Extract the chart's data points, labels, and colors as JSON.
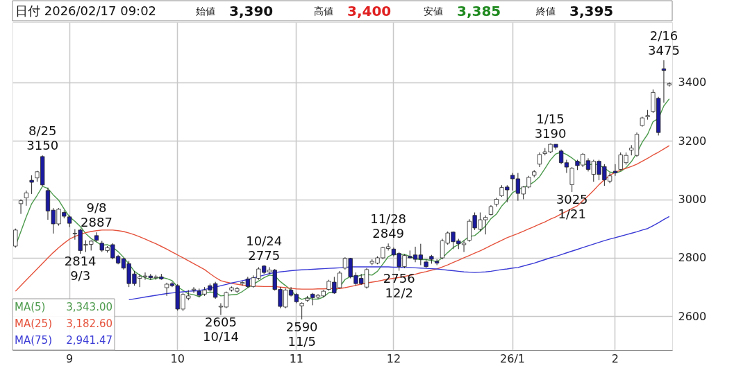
{
  "chart_data": {
    "type": "candlestick",
    "categories": [
      null,
      null,
      null,
      null,
      null,
      null,
      null,
      null,
      null,
      null,
      "9",
      null,
      null,
      null,
      null,
      null,
      null,
      null,
      null,
      null,
      null,
      null,
      null,
      null,
      null,
      null,
      null,
      null,
      null,
      null,
      "10",
      null,
      null,
      null,
      null,
      null,
      null,
      null,
      null,
      null,
      null,
      null,
      null,
      null,
      null,
      null,
      null,
      null,
      null,
      null,
      null,
      null,
      "11",
      null,
      null,
      null,
      null,
      null,
      null,
      null,
      null,
      null,
      null,
      null,
      null,
      null,
      null,
      null,
      null,
      null,
      "12",
      null,
      null,
      null,
      null,
      null,
      null,
      null,
      null,
      null,
      null,
      null,
      null,
      null,
      null,
      null,
      null,
      null,
      null,
      null,
      null,
      null,
      "26/1",
      null,
      null,
      null,
      null,
      null,
      null,
      null,
      null,
      null,
      null,
      null,
      null,
      null,
      null,
      null,
      null,
      null,
      null,
      "2",
      null,
      null,
      null,
      null,
      null,
      null,
      null,
      null,
      null,
      null
    ],
    "ohlc": [
      [
        2840,
        2900,
        2835,
        2895
      ],
      [
        2985,
        3000,
        2950,
        2995
      ],
      [
        3005,
        3030,
        2978,
        3022
      ],
      [
        3065,
        3082,
        3018,
        3058
      ],
      [
        3073,
        3097,
        3060,
        3094
      ],
      [
        3146,
        3150,
        3045,
        3049
      ],
      [
        3030,
        3040,
        2930,
        2960
      ],
      [
        2963,
        2970,
        2883,
        2916
      ],
      [
        2916,
        2970,
        2910,
        2966
      ],
      [
        2955,
        2962,
        2935,
        2942
      ],
      [
        2940,
        2945,
        2905,
        2918
      ],
      [
        2882,
        2898,
        2862,
        2884
      ],
      [
        2895,
        2900,
        2814,
        2825
      ],
      [
        2843,
        2860,
        2820,
        2846
      ],
      [
        2846,
        2860,
        2825,
        2857
      ],
      [
        2876,
        2887,
        2855,
        2860
      ],
      [
        2850,
        2858,
        2820,
        2826
      ],
      [
        2825,
        2840,
        2818,
        2835
      ],
      [
        2845,
        2850,
        2795,
        2800
      ],
      [
        2805,
        2810,
        2778,
        2782
      ],
      [
        2797,
        2800,
        2760,
        2765
      ],
      [
        2780,
        2790,
        2700,
        2712
      ],
      [
        2745,
        2755,
        2705,
        2712
      ],
      [
        2730,
        2745,
        2700,
        2735
      ],
      [
        2735,
        2750,
        2725,
        2738
      ],
      [
        2738,
        2745,
        2725,
        2732
      ],
      [
        2732,
        2742,
        2725,
        2735
      ],
      [
        2735,
        2745,
        2725,
        2728
      ],
      [
        2698,
        2715,
        2670,
        2710
      ],
      [
        2712,
        2718,
        2700,
        2705
      ],
      [
        2705,
        2710,
        2620,
        2625
      ],
      [
        2625,
        2680,
        2618,
        2675
      ],
      [
        2662,
        2690,
        2655,
        2670
      ],
      [
        2690,
        2700,
        2680,
        2693
      ],
      [
        2686,
        2695,
        2665,
        2672
      ],
      [
        2676,
        2700,
        2670,
        2690
      ],
      [
        2705,
        2712,
        2685,
        2690
      ],
      [
        2712,
        2718,
        2660,
        2665
      ],
      [
        2632,
        2645,
        2605,
        2635
      ],
      [
        2632,
        2685,
        2628,
        2681
      ],
      [
        2690,
        2702,
        2685,
        2698
      ],
      [
        2686,
        2700,
        2680,
        2695
      ],
      [
        2712,
        2720,
        2705,
        2716
      ],
      [
        2728,
        2735,
        2698,
        2702
      ],
      [
        2702,
        2740,
        2698,
        2732
      ],
      [
        2730,
        2768,
        2725,
        2762
      ],
      [
        2772,
        2775,
        2745,
        2750
      ],
      [
        2752,
        2768,
        2745,
        2758
      ],
      [
        2758,
        2762,
        2688,
        2692
      ],
      [
        2692,
        2700,
        2628,
        2634
      ],
      [
        2632,
        2695,
        2628,
        2690
      ],
      [
        2690,
        2700,
        2668,
        2672
      ],
      [
        2675,
        2680,
        2645,
        2650
      ],
      [
        2636,
        2648,
        2590,
        2645
      ],
      [
        2655,
        2670,
        2650,
        2662
      ],
      [
        2676,
        2680,
        2638,
        2664
      ],
      [
        2666,
        2676,
        2660,
        2672
      ],
      [
        2670,
        2690,
        2665,
        2686
      ],
      [
        2692,
        2725,
        2688,
        2720
      ],
      [
        2717,
        2735,
        2677,
        2680
      ],
      [
        2698,
        2755,
        2695,
        2748
      ],
      [
        2765,
        2802,
        2760,
        2798
      ],
      [
        2798,
        2800,
        2730,
        2735
      ],
      [
        2740,
        2750,
        2705,
        2712
      ],
      [
        2730,
        2745,
        2708,
        2712
      ],
      [
        2700,
        2765,
        2695,
        2760
      ],
      [
        2782,
        2795,
        2775,
        2788
      ],
      [
        2782,
        2805,
        2778,
        2800
      ],
      [
        2800,
        2838,
        2795,
        2835
      ],
      [
        2832,
        2849,
        2825,
        2838
      ],
      [
        2830,
        2835,
        2805,
        2810
      ],
      [
        2815,
        2820,
        2756,
        2770
      ],
      [
        2770,
        2812,
        2765,
        2808
      ],
      [
        2805,
        2825,
        2798,
        2800
      ],
      [
        2810,
        2838,
        2785,
        2795
      ],
      [
        2810,
        2848,
        2775,
        2795
      ],
      [
        2786,
        2795,
        2765,
        2770
      ],
      [
        2805,
        2810,
        2780,
        2795
      ],
      [
        2788,
        2795,
        2775,
        2782
      ],
      [
        2800,
        2865,
        2795,
        2858
      ],
      [
        2850,
        2890,
        2845,
        2885
      ],
      [
        2888,
        2890,
        2830,
        2855
      ],
      [
        2858,
        2865,
        2830,
        2848
      ],
      [
        2845,
        2860,
        2820,
        2850
      ],
      [
        2860,
        2932,
        2855,
        2925
      ],
      [
        2945,
        2955,
        2895,
        2902
      ],
      [
        2898,
        2955,
        2890,
        2930
      ],
      [
        2930,
        2945,
        2880,
        2938
      ],
      [
        2948,
        2980,
        2945,
        2975
      ],
      [
        2983,
        3005,
        2975,
        3000
      ],
      [
        3012,
        3048,
        3008,
        3040
      ],
      [
        3042,
        3048,
        2990,
        3032
      ],
      [
        3082,
        3090,
        3030,
        3070
      ],
      [
        3070,
        3090,
        2995,
        3020
      ],
      [
        3018,
        3045,
        3000,
        3042
      ],
      [
        3042,
        3080,
        3038,
        3075
      ],
      [
        3082,
        3100,
        3075,
        3094
      ],
      [
        3120,
        3160,
        3110,
        3153
      ],
      [
        3156,
        3175,
        3150,
        3162
      ],
      [
        3162,
        3190,
        3158,
        3188
      ],
      [
        3188,
        3188,
        3170,
        3178
      ],
      [
        3165,
        3170,
        3120,
        3125
      ],
      [
        3125,
        3135,
        3090,
        3110
      ],
      [
        3050,
        3110,
        3025,
        3106
      ],
      [
        3130,
        3135,
        3100,
        3115
      ],
      [
        3117,
        3158,
        3110,
        3154
      ],
      [
        3132,
        3140,
        3095,
        3102
      ],
      [
        3085,
        3135,
        3060,
        3130
      ],
      [
        3130,
        3135,
        3065,
        3085
      ],
      [
        3112,
        3120,
        3046,
        3066
      ],
      [
        3062,
        3090,
        3055,
        3080
      ],
      [
        3096,
        3120,
        3080,
        3090
      ],
      [
        3102,
        3160,
        3098,
        3152
      ],
      [
        3125,
        3160,
        3118,
        3150
      ],
      [
        3168,
        3185,
        3150,
        3175
      ],
      [
        3150,
        3228,
        3145,
        3222
      ],
      [
        3252,
        3282,
        3248,
        3278
      ],
      [
        3282,
        3305,
        3272,
        3286
      ],
      [
        3300,
        3375,
        3295,
        3365
      ],
      [
        3345,
        3350,
        3218,
        3228
      ],
      [
        3446,
        3475,
        3330,
        3440
      ],
      [
        3390,
        3400,
        3385,
        3395
      ]
    ],
    "colors": [
      "#ffffff",
      "#ffffff",
      "#ffffff",
      "#1a1aa0",
      "#ffffff",
      "#1a1aa0",
      "#1a1aa0",
      "#1a1aa0",
      "#ffffff",
      "#1a1aa0",
      "#1a1aa0",
      "#ffffff",
      "#1a1aa0",
      "#ffffff",
      "#ffffff",
      "#1a1aa0",
      "#1a1aa0",
      "#ffffff",
      "#1a1aa0",
      "#1a1aa0",
      "#1a1aa0",
      "#1a1aa0",
      "#1a1aa0",
      "#ffffff",
      "#ffffff",
      "#1a1aa0",
      "#ffffff",
      "#1a1aa0",
      "#ffffff",
      "#1a1aa0",
      "#1a1aa0",
      "#ffffff",
      "#ffffff",
      "#ffffff",
      "#1a1aa0",
      "#ffffff",
      "#1a1aa0",
      "#1a1aa0",
      "#ffffff",
      "#ffffff",
      "#ffffff",
      "#ffffff",
      "#ffffff",
      "#1a1aa0",
      "#ffffff",
      "#ffffff",
      "#1a1aa0",
      "#ffffff",
      "#1a1aa0",
      "#1a1aa0",
      "#ffffff",
      "#1a1aa0",
      "#1a1aa0",
      "#ffffff",
      "#ffffff",
      "#1a1aa0",
      "#ffffff",
      "#ffffff",
      "#ffffff",
      "#1a1aa0",
      "#ffffff",
      "#ffffff",
      "#1a1aa0",
      "#1a1aa0",
      "#1a1aa0",
      "#ffffff",
      "#ffffff",
      "#ffffff",
      "#ffffff",
      "#ffffff",
      "#1a1aa0",
      "#1a1aa0",
      "#ffffff",
      "#1a1aa0",
      "#1a1aa0",
      "#1a1aa0",
      "#1a1aa0",
      "#1a1aa0",
      "#1a1aa0",
      "#ffffff",
      "#ffffff",
      "#1a1aa0",
      "#1a1aa0",
      "#ffffff",
      "#ffffff",
      "#1a1aa0",
      "#ffffff",
      "#ffffff",
      "#ffffff",
      "#ffffff",
      "#ffffff",
      "#1a1aa0",
      "#1a1aa0",
      "#1a1aa0",
      "#ffffff",
      "#ffffff",
      "#ffffff",
      "#ffffff",
      "#ffffff",
      "#ffffff",
      "#1a1aa0",
      "#1a1aa0",
      "#1a1aa0",
      "#ffffff",
      "#1a1aa0",
      "#ffffff",
      "#1a1aa0",
      "#ffffff",
      "#1a1aa0",
      "#1a1aa0",
      "#ffffff",
      "#1a1aa0",
      "#ffffff",
      "#ffffff",
      "#ffffff",
      "#ffffff",
      "#ffffff",
      "#ffffff",
      "#ffffff",
      "#1a1aa0",
      "#1a1aa0",
      "#ffffff"
    ],
    "series": [
      {
        "name": "MA(5)",
        "type": "line",
        "color": "#4c9a4c",
        "values": [
          2840,
          2890,
          2940,
          2985,
          3013,
          3044,
          3037,
          3015,
          2997,
          2967,
          2940,
          2925,
          2907,
          2883,
          2866,
          2854,
          2843,
          2845,
          2836,
          2821,
          2802,
          2779,
          2754,
          2741,
          2732,
          2726,
          2730,
          2734,
          2729,
          2722,
          2701,
          2689,
          2677,
          2674,
          2667,
          2680,
          2683,
          2682,
          2670,
          2672,
          2674,
          2675,
          2685,
          2698,
          2709,
          2721,
          2732,
          2741,
          2739,
          2719,
          2705,
          2689,
          2668,
          2658,
          2664,
          2659,
          2659,
          2666,
          2681,
          2684,
          2701,
          2726,
          2736,
          2735,
          2741,
          2743,
          2741,
          2754,
          2779,
          2804,
          2814,
          2811,
          2812,
          2805,
          2797,
          2794,
          2794,
          2791,
          2787,
          2800,
          2818,
          2835,
          2846,
          2859,
          2873,
          2876,
          2891,
          2909,
          2934,
          2949,
          2977,
          2997,
          3023,
          3032,
          3041,
          3048,
          3060,
          3077,
          3105,
          3134,
          3155,
          3161,
          3153,
          3141,
          3127,
          3122,
          3117,
          3121,
          3117,
          3107,
          3093,
          3090,
          3095,
          3108,
          3129,
          3158,
          3195,
          3222,
          3265,
          3276,
          3319,
          3343
        ]
      },
      {
        "name": "MA(25)",
        "type": "line",
        "color": "#e5533d",
        "values": [
          2686,
          2705,
          2724,
          2743,
          2762,
          2781,
          2800,
          2818,
          2835,
          2850,
          2864,
          2873,
          2880,
          2886,
          2890,
          2893,
          2895,
          2895,
          2895,
          2893,
          2890,
          2885,
          2879,
          2872,
          2864,
          2856,
          2848,
          2839,
          2830,
          2820,
          2810,
          2800,
          2790,
          2780,
          2770,
          2760,
          2746,
          2733,
          2722,
          2717,
          2713,
          2710,
          2707,
          2705,
          2704,
          2703,
          2702,
          2702,
          2702,
          2700,
          2698,
          2696,
          2694,
          2693,
          2693,
          2693,
          2694,
          2694,
          2695,
          2695,
          2695,
          2698,
          2702,
          2706,
          2710,
          2714,
          2717,
          2720,
          2724,
          2727,
          2730,
          2733,
          2737,
          2740,
          2744,
          2749,
          2753,
          2758,
          2762,
          2769,
          2776,
          2784,
          2792,
          2800,
          2808,
          2816,
          2824,
          2833,
          2842,
          2851,
          2860,
          2869,
          2876,
          2883,
          2891,
          2899,
          2907,
          2915,
          2923,
          2932,
          2940,
          2950,
          2959,
          2969,
          2978,
          2995,
          3012,
          3030,
          3050,
          3067,
          3082,
          3092,
          3100,
          3106,
          3112,
          3120,
          3130,
          3140,
          3151,
          3161,
          3172,
          3183
        ]
      },
      {
        "name": "MA(75)",
        "type": "line",
        "color": "#3a3ad6",
        "values": [
          null,
          null,
          null,
          null,
          null,
          null,
          null,
          null,
          null,
          null,
          null,
          null,
          null,
          null,
          null,
          null,
          null,
          null,
          null,
          null,
          null,
          2657,
          2660,
          2663,
          2666,
          2669,
          2672,
          2675,
          2678,
          2680,
          2682,
          2684,
          2686,
          2687,
          2688,
          2692,
          2696,
          2700,
          2705,
          2709,
          2714,
          2718,
          2722,
          2726,
          2731,
          2736,
          2741,
          2746,
          2750,
          2752,
          2754,
          2756,
          2758,
          2759,
          2760,
          2761,
          2762,
          2763,
          2764,
          2765,
          2766,
          2767,
          2769,
          2769,
          2769,
          2769,
          2769,
          2769,
          2769,
          2769,
          2768,
          2768,
          2767,
          2767,
          2766,
          2765,
          2764,
          2763,
          2762,
          2760,
          2758,
          2756,
          2754,
          2752,
          2751,
          2750,
          2751,
          2752,
          2754,
          2757,
          2760,
          2762,
          2765,
          2767,
          2772,
          2777,
          2782,
          2788,
          2794,
          2800,
          2805,
          2811,
          2817,
          2823,
          2829,
          2835,
          2841,
          2847,
          2853,
          2859,
          2864,
          2869,
          2874,
          2879,
          2884,
          2889,
          2895,
          2900,
          2910,
          2920,
          2931,
          2941
        ]
      }
    ],
    "ylim": [
      2485,
      3605
    ],
    "yticks": [
      2600,
      2800,
      3000,
      3200,
      3400
    ],
    "grid": true,
    "legend": "bottom left",
    "annotations": [
      "日付 2026/02/17 09:02",
      "始値",
      "3,390",
      "高値",
      "3,400",
      "安値",
      "3,385",
      "終値",
      "3,395",
      "3,343.00",
      "3,182.60",
      "2,941.47",
      {
        "text": "8/25\n3150",
        "y": 3150
      },
      {
        "text": "2814\n9/3",
        "y": 2814
      },
      {
        "text": "9/8\n2887",
        "y": 2887
      },
      {
        "text": "2605\n10/14",
        "y": 2605
      },
      {
        "text": "10/24\n2775",
        "y": 2775
      },
      {
        "text": "2590\n11/5",
        "y": 2590
      },
      {
        "text": "11/28\n2849",
        "y": 2849
      },
      {
        "text": "2756\n12/2",
        "y": 2756
      },
      {
        "text": "1/15\n3190",
        "y": 3190
      },
      {
        "text": "3025\n1/21",
        "y": 3025
      },
      {
        "text": "2/16\n3475",
        "y": 3475
      }
    ]
  }
}
